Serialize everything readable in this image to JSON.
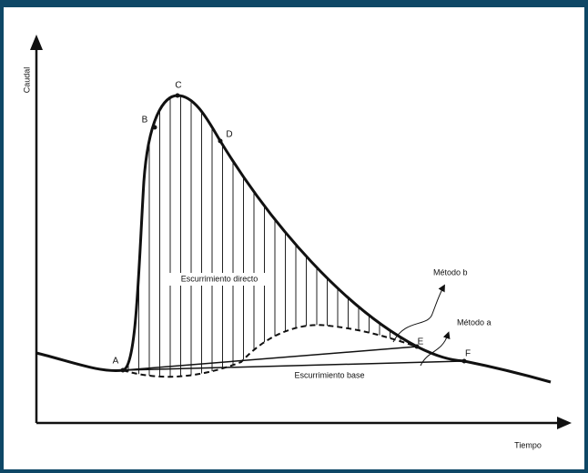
{
  "axes": {
    "y_label": "Caudal",
    "x_label": "Tiempo"
  },
  "points": [
    "A",
    "B",
    "C",
    "D",
    "E",
    "F"
  ],
  "regions": {
    "direct": "Escurrimiento directo",
    "base": "Escurrimiento base"
  },
  "methods": {
    "b": "Método b",
    "a": "Método a"
  }
}
